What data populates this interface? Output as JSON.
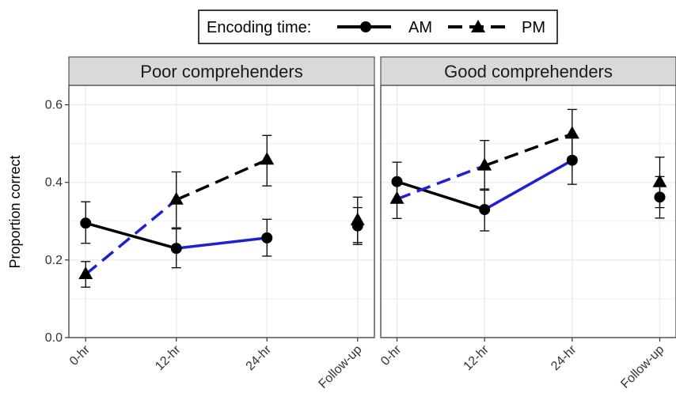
{
  "chart_data": {
    "type": "line",
    "legend": {
      "title": "Encoding time:",
      "position": "top",
      "entries": [
        {
          "label": "AM",
          "marker": "circle",
          "line": "solid"
        },
        {
          "label": "PM",
          "marker": "triangle",
          "line": "dashed"
        }
      ]
    },
    "ylabel": "Proportion correct",
    "xlabel": "",
    "ylim": [
      0.0,
      0.65
    ],
    "yticks": [
      "0.0",
      "0.2",
      "0.4",
      "0.6"
    ],
    "categories": [
      "0-hr",
      "12-hr",
      "24-hr",
      "Follow-up"
    ],
    "grid": true,
    "panels": [
      {
        "title": "Poor comprehenders",
        "series": [
          {
            "name": "AM",
            "x": [
              "0-hr",
              "12-hr",
              "24-hr",
              "Follow-up"
            ],
            "values": [
              0.295,
              0.23,
              0.257,
              0.288
            ],
            "err_low": [
              0.243,
              0.18,
              0.21,
              0.24
            ],
            "err_high": [
              0.35,
              0.28,
              0.305,
              0.335
            ]
          },
          {
            "name": "PM",
            "x": [
              "0-hr",
              "12-hr",
              "24-hr",
              "Follow-up"
            ],
            "values": [
              0.163,
              0.355,
              0.458,
              0.302
            ],
            "err_low": [
              0.13,
              0.283,
              0.391,
              0.245
            ],
            "err_high": [
              0.196,
              0.427,
              0.521,
              0.362
            ]
          }
        ]
      },
      {
        "title": "Good comprehenders",
        "series": [
          {
            "name": "AM",
            "x": [
              "0-hr",
              "12-hr",
              "24-hr",
              "Follow-up"
            ],
            "values": [
              0.402,
              0.33,
              0.457,
              0.362
            ],
            "err_low": [
              0.355,
              0.275,
              0.395,
              0.308
            ],
            "err_high": [
              0.452,
              0.383,
              0.522,
              0.415
            ]
          },
          {
            "name": "PM",
            "x": [
              "0-hr",
              "12-hr",
              "24-hr",
              "Follow-up"
            ],
            "values": [
              0.357,
              0.443,
              0.525,
              0.4
            ],
            "err_low": [
              0.307,
              0.38,
              0.465,
              0.335
            ],
            "err_high": [
              0.407,
              0.508,
              0.588,
              0.465
            ]
          }
        ]
      }
    ],
    "segment_colors": {
      "same_session": "#000000",
      "changed_session": "#1f1fd6"
    },
    "colors": {
      "ink": "#000000",
      "strip_bg": "#d9d9d9",
      "grid": "#ebebeb",
      "frame": "#333333",
      "blue": "#1f1fd6"
    }
  }
}
